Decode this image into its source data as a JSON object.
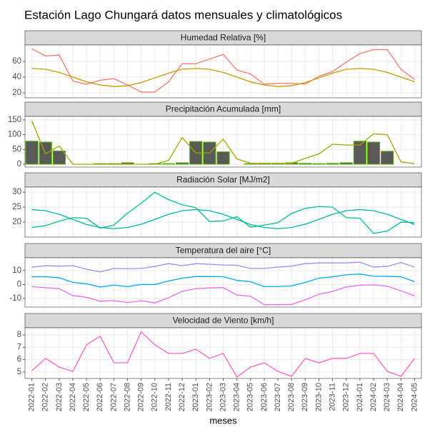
{
  "title": "Estación Lago Chungará datos mensuales y climatológicos",
  "chart_data": [
    {
      "type": "line",
      "title": "Humedad Relativa [%]",
      "grid": true,
      "ylim": [
        13.6,
        80.9
      ],
      "yticks": [
        20,
        40,
        60
      ],
      "series": [
        {
          "color": "#F8766D",
          "values": [
            76,
            67,
            68,
            35,
            31,
            36,
            38,
            30,
            21,
            21,
            34,
            57,
            57,
            63,
            69,
            49,
            44,
            31,
            32,
            32,
            31,
            41,
            47,
            59,
            70,
            75,
            75,
            50,
            37
          ]
        },
        {
          "color": "#C49A00",
          "values": [
            51,
            50,
            46,
            40,
            34,
            30,
            28,
            29,
            33,
            39,
            45,
            50,
            51,
            50,
            46,
            40,
            34,
            30,
            28,
            29,
            33,
            39,
            45,
            50,
            51,
            50,
            46,
            40,
            34
          ]
        }
      ]
    },
    {
      "type": "bar",
      "title": "Precipitación Acumulada [mm]",
      "grid": true,
      "ylim": [
        -9.7,
        162
      ],
      "yticks": [
        0,
        50,
        100,
        150
      ],
      "series": [
        {
          "type": "bar",
          "color": "#595959",
          "edge": "#53B400",
          "values": [
            78,
            75,
            45,
            0,
            0,
            2,
            2,
            5,
            0,
            2,
            2,
            5,
            77,
            75,
            42,
            0,
            2,
            2,
            2,
            5,
            3,
            2,
            3,
            5,
            78,
            75,
            44,
            0,
            0
          ]
        },
        {
          "type": "line",
          "color": "#A3A500",
          "values": [
            147,
            35,
            62,
            0,
            0,
            0,
            0,
            0,
            0,
            0,
            13,
            90,
            38,
            38,
            85,
            18,
            3,
            3,
            3,
            3,
            20,
            35,
            68,
            65,
            65,
            103,
            100,
            8,
            2
          ]
        }
      ]
    },
    {
      "type": "line",
      "title": "Radiación Solar [MJ/m2]",
      "grid": true,
      "ylim": [
        15,
        31.7
      ],
      "yticks": [
        20,
        25,
        30
      ],
      "series": [
        {
          "color": "#00C08B",
          "values": [
            18.2,
            18.8,
            20.3,
            21.5,
            21.3,
            18.0,
            19.0,
            23.0,
            26.3,
            30.0,
            27.5,
            25.8,
            24.8,
            20.2,
            20.4,
            21.8,
            18.3,
            19.0,
            19.8,
            22.9,
            24.6,
            25.2,
            25.0,
            21.5,
            21.3,
            16.2,
            17.0,
            20.0,
            19.8
          ]
        },
        {
          "color": "#00B5A8",
          "values": [
            24.2,
            23.8,
            22.6,
            20.9,
            19.2,
            18.2,
            17.8,
            18.2,
            19.3,
            20.9,
            22.6,
            23.8,
            24.2,
            23.8,
            22.6,
            20.9,
            19.2,
            18.2,
            17.8,
            18.2,
            19.3,
            20.9,
            22.6,
            23.8,
            24.2,
            23.8,
            22.6,
            20.9,
            19.2
          ]
        }
      ]
    },
    {
      "type": "line",
      "title": "Temperatura del aire [°C]",
      "grid": true,
      "ylim": [
        -16.2,
        19.2
      ],
      "yticks": [
        -10,
        0,
        10
      ],
      "series": [
        {
          "color": "#9590FF",
          "values": [
            12.5,
            13.5,
            13.2,
            13.5,
            11.0,
            9.0,
            11.5,
            11.3,
            11.5,
            13.0,
            15.0,
            13.5,
            15.0,
            14.5,
            14.0,
            13.8,
            11.5,
            11.5,
            12.5,
            13.2,
            15.0,
            15.5,
            15.5,
            15.5,
            16.0,
            12.5,
            13.0,
            15.8,
            12.5
          ]
        },
        {
          "color": "#00A9FF",
          "values": [
            5.5,
            5.6,
            4.8,
            1.5,
            0.5,
            -1.8,
            -0.5,
            -1.5,
            0,
            0,
            2.5,
            4.5,
            5.7,
            5.7,
            5.6,
            3,
            2,
            -1.5,
            -1.5,
            -1,
            1.5,
            4.5,
            5.5,
            7,
            7.5,
            6,
            5.9,
            5.5,
            2
          ]
        },
        {
          "color": "#E76BF3",
          "values": [
            -1.5,
            -2.3,
            -3.0,
            -8.0,
            -9.2,
            -12.0,
            -11.5,
            -13.0,
            -11.7,
            -13.2,
            -9.5,
            -5.0,
            -3.0,
            -2.5,
            -2.2,
            -7.5,
            -8.5,
            -14.5,
            -14.5,
            -14.3,
            -11.0,
            -7.0,
            -5.0,
            -1.8,
            -0.5,
            -0.3,
            -1.2,
            -4.5,
            -8.2
          ]
        }
      ]
    },
    {
      "type": "line",
      "title": "Velocidad de Viento [km/h]",
      "grid": true,
      "xlabel": "meses",
      "ylim": [
        4.48,
        8.58
      ],
      "yticks": [
        5,
        6,
        7,
        8
      ],
      "categories": [
        "2022-01",
        "2022-02",
        "2022-03",
        "2022-04",
        "2022-05",
        "2022-06",
        "2022-07",
        "2022-08",
        "2022-09",
        "2022-10",
        "2022-11",
        "2022-12",
        "2023-01",
        "2023-02",
        "2023-03",
        "2023-04",
        "2023-05",
        "2023-06",
        "2023-07",
        "2023-08",
        "2023-09",
        "2023-10",
        "2023-11",
        "2023-12",
        "2024-01",
        "2024-02",
        "2024-03",
        "2024-04",
        "2024-05"
      ],
      "series": [
        {
          "color": "#FF61C3",
          "values": [
            5.1,
            6.1,
            5.4,
            5.05,
            7.2,
            7.9,
            5.75,
            5.75,
            8.25,
            7.2,
            6.5,
            6.5,
            6.85,
            6.1,
            6.5,
            4.6,
            5.4,
            5.75,
            5.05,
            4.65,
            6.1,
            5.75,
            6.1,
            6.1,
            6.5,
            6.5,
            5.05,
            4.65,
            6.1
          ]
        }
      ]
    }
  ]
}
